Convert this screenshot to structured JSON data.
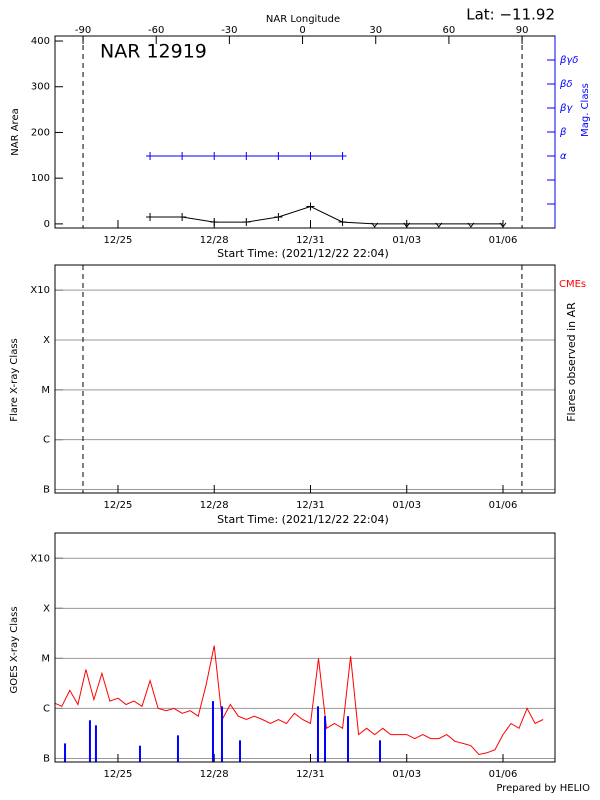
{
  "chart_data": [
    {
      "type": "line",
      "annotation": "NAR 12919",
      "lat_label": "Lat: −11.92",
      "x2label": "NAR Longitude",
      "xlabel": "Start Time: (2021/12/22 22:04)",
      "ylabel": "NAR Area",
      "y2label": "Mag. Class",
      "xlim": [
        "2021-12-23T00:54",
        "2022-01-07T14:54"
      ],
      "xticks": [
        {
          "value": "2021-12-25T00:00",
          "label": "12/25"
        },
        {
          "value": "2021-12-28T00:00",
          "label": "12/28"
        },
        {
          "value": "2021-12-31T00:00",
          "label": "12/31"
        },
        {
          "value": "2022-01-03T00:00",
          "label": "01/03"
        },
        {
          "value": "2022-01-06T00:00",
          "label": "01/06"
        }
      ],
      "x2lim": [
        -101.5,
        103.5
      ],
      "x2ticks": [
        -90,
        -60,
        -30,
        0,
        30,
        60,
        90
      ],
      "ylim": [
        -9,
        411
      ],
      "yticks": [
        0,
        100,
        200,
        300,
        400
      ],
      "y2lim": [
        -1,
        7
      ],
      "y2categories": [
        null,
        null,
        "α",
        "β",
        "βγ",
        "βδ",
        "βγδ"
      ],
      "limb_lines": [
        -90,
        90
      ],
      "series": [
        {
          "color": "#000000",
          "x": [
            "2021-12-26T00:00",
            "2021-12-27T00:00",
            "2021-12-28T00:00",
            "2021-12-29T00:00",
            "2021-12-30T00:00",
            "2021-12-31T00:00",
            "2022-01-01T00:00",
            "2022-01-02T00:00",
            "2022-01-03T00:00",
            "2022-01-04T00:00",
            "2022-01-05T00:00",
            "2022-01-06T00:00"
          ],
          "values": [
            15,
            15,
            4,
            4,
            15,
            38,
            4,
            0,
            0,
            0,
            0,
            0
          ],
          "markers": [
            "plus",
            "plus",
            "plus",
            "plus",
            "plus",
            "plus",
            "plus",
            "down-arrow",
            "down-arrow",
            "down-arrow",
            "down-arrow",
            "down-arrow"
          ]
        },
        {
          "color": "#0000ff",
          "axis": "y2",
          "x": [
            "2021-12-26T00:00",
            "2021-12-27T00:00",
            "2021-12-28T00:00",
            "2021-12-29T00:00",
            "2021-12-30T00:00",
            "2021-12-31T00:00",
            "2022-01-01T00:00"
          ],
          "values": [
            "α",
            "α",
            "α",
            "α",
            "α",
            "α",
            "α"
          ],
          "markers": [
            "plus",
            "plus",
            "plus",
            "plus",
            "plus",
            "plus",
            "plus"
          ]
        }
      ]
    },
    {
      "type": "scatter",
      "xlabel": "Start Time: (2021/12/22 22:04)",
      "ylabel": "Flare X-ray Class",
      "y2label": "Flares observed in AR",
      "xlim": [
        "2021-12-23T00:54",
        "2022-01-07T14:54"
      ],
      "xticks": [
        {
          "value": "2021-12-25T00:00",
          "label": "12/25"
        },
        {
          "value": "2021-12-28T00:00",
          "label": "12/28"
        },
        {
          "value": "2021-12-31T00:00",
          "label": "12/31"
        },
        {
          "value": "2022-01-03T00:00",
          "label": "01/03"
        },
        {
          "value": "2022-01-06T00:00",
          "label": "01/06"
        }
      ],
      "ylog": true,
      "ylim": [
        8.5e-08,
        0.0032
      ],
      "yticks": [
        {
          "value": 1e-07,
          "label": "B"
        },
        {
          "value": 1e-06,
          "label": "C"
        },
        {
          "value": 1e-05,
          "label": "M"
        },
        {
          "value": 0.0001,
          "label": "X"
        },
        {
          "value": 0.001,
          "label": "X10"
        }
      ],
      "grid": true,
      "limb_times": [
        "2021-12-23T21:50",
        "2022-01-06T14:10"
      ],
      "legend": "upper right outside",
      "series": [
        {
          "name": "CMEs",
          "color": "#ff0000",
          "x": [],
          "values": []
        }
      ]
    },
    {
      "type": "line",
      "ylabel": "GOES X-ray Class",
      "footer": "Prepared by HELIO",
      "xlim": [
        "2021-12-23T00:54",
        "2022-01-07T14:54"
      ],
      "xticks": [
        {
          "value": "2021-12-25T00:00",
          "label": "12/25"
        },
        {
          "value": "2021-12-28T00:00",
          "label": "12/28"
        },
        {
          "value": "2021-12-31T00:00",
          "label": "12/31"
        },
        {
          "value": "2022-01-03T00:00",
          "label": "01/03"
        },
        {
          "value": "2022-01-06T00:00",
          "label": "01/06"
        }
      ],
      "ylog": true,
      "ylim": [
        8.5e-08,
        0.0032
      ],
      "yticks": [
        {
          "value": 1e-07,
          "label": "B"
        },
        {
          "value": 1e-06,
          "label": "C"
        },
        {
          "value": 1e-05,
          "label": "M"
        },
        {
          "value": 0.0001,
          "label": "X"
        },
        {
          "value": 0.001,
          "label": "X10"
        }
      ],
      "grid": true,
      "series": [
        {
          "color": "#ff0000",
          "x": [
            "2021-12-23T00:00",
            "2021-12-23T06:00",
            "2021-12-23T12:00",
            "2021-12-23T18:00",
            "2021-12-24T00:00",
            "2021-12-24T06:00",
            "2021-12-24T12:00",
            "2021-12-24T18:00",
            "2021-12-25T00:00",
            "2021-12-25T06:00",
            "2021-12-25T12:00",
            "2021-12-25T18:00",
            "2021-12-26T00:00",
            "2021-12-26T06:00",
            "2021-12-26T12:00",
            "2021-12-26T18:00",
            "2021-12-27T00:00",
            "2021-12-27T06:00",
            "2021-12-27T12:00",
            "2021-12-27T18:00",
            "2021-12-28T00:00",
            "2021-12-28T06:00",
            "2021-12-28T12:00",
            "2021-12-28T18:00",
            "2021-12-29T00:00",
            "2021-12-29T06:00",
            "2021-12-29T12:00",
            "2021-12-29T18:00",
            "2021-12-30T00:00",
            "2021-12-30T06:00",
            "2021-12-30T12:00",
            "2021-12-30T18:00",
            "2021-12-31T00:00",
            "2021-12-31T06:00",
            "2021-12-31T12:00",
            "2021-12-31T18:00",
            "2022-01-01T00:00",
            "2022-01-01T06:00",
            "2022-01-01T12:00",
            "2022-01-01T18:00",
            "2022-01-02T00:00",
            "2022-01-02T06:00",
            "2022-01-02T12:00",
            "2022-01-02T18:00",
            "2022-01-03T00:00",
            "2022-01-03T06:00",
            "2022-01-03T12:00",
            "2022-01-03T18:00",
            "2022-01-04T00:00",
            "2022-01-04T06:00",
            "2022-01-04T12:00",
            "2022-01-04T18:00",
            "2022-01-05T00:00",
            "2022-01-05T06:00",
            "2022-01-05T12:00",
            "2022-01-05T18:00",
            "2022-01-06T00:00",
            "2022-01-06T06:00",
            "2022-01-06T12:00",
            "2022-01-06T18:00",
            "2022-01-07T00:00",
            "2022-01-07T06:00"
          ],
          "values": [
            1.3e-06,
            1.1e-06,
            2.3e-06,
            1.2e-06,
            6e-06,
            1.5e-06,
            5e-06,
            1.4e-06,
            1.6e-06,
            1.2e-06,
            1.4e-06,
            1.1e-06,
            3.6e-06,
            1e-06,
            9e-07,
            1e-06,
            8e-07,
            9e-07,
            7e-07,
            3e-06,
            1.8e-05,
            6e-07,
            1.2e-06,
            7e-07,
            6e-07,
            7e-07,
            6e-07,
            5e-07,
            6e-07,
            5e-07,
            8e-07,
            6e-07,
            5e-07,
            1e-05,
            4e-07,
            5e-07,
            4e-07,
            1.1e-05,
            3e-07,
            4e-07,
            3e-07,
            4e-07,
            3e-07,
            3e-07,
            3e-07,
            2.5e-07,
            3e-07,
            2.5e-07,
            2.5e-07,
            3e-07,
            2.2e-07,
            2e-07,
            1.8e-07,
            1.2e-07,
            1.3e-07,
            1.5e-07,
            3e-07,
            5e-07,
            4e-07,
            1e-06,
            5e-07,
            6e-07
          ]
        },
        {
          "color": "#0000ff",
          "type": "bar",
          "x": [
            "2021-12-23T08:24",
            "2021-12-24T03:03",
            "2021-12-24T07:32",
            "2021-12-25T16:28",
            "2021-12-26T20:53",
            "2021-12-27T23:04",
            "2021-12-28T05:48",
            "2021-12-28T19:17",
            "2021-12-31T05:37",
            "2021-12-31T10:52",
            "2022-01-01T04:04",
            "2022-01-02T04:00"
          ],
          "values": [
            2e-07,
            5.8e-07,
            4.6e-07,
            1.8e-07,
            2.9e-07,
            1.4e-06,
            1.1e-06,
            2.3e-07,
            1.1e-06,
            7e-07,
            7e-07,
            2.3e-07
          ]
        }
      ]
    }
  ]
}
